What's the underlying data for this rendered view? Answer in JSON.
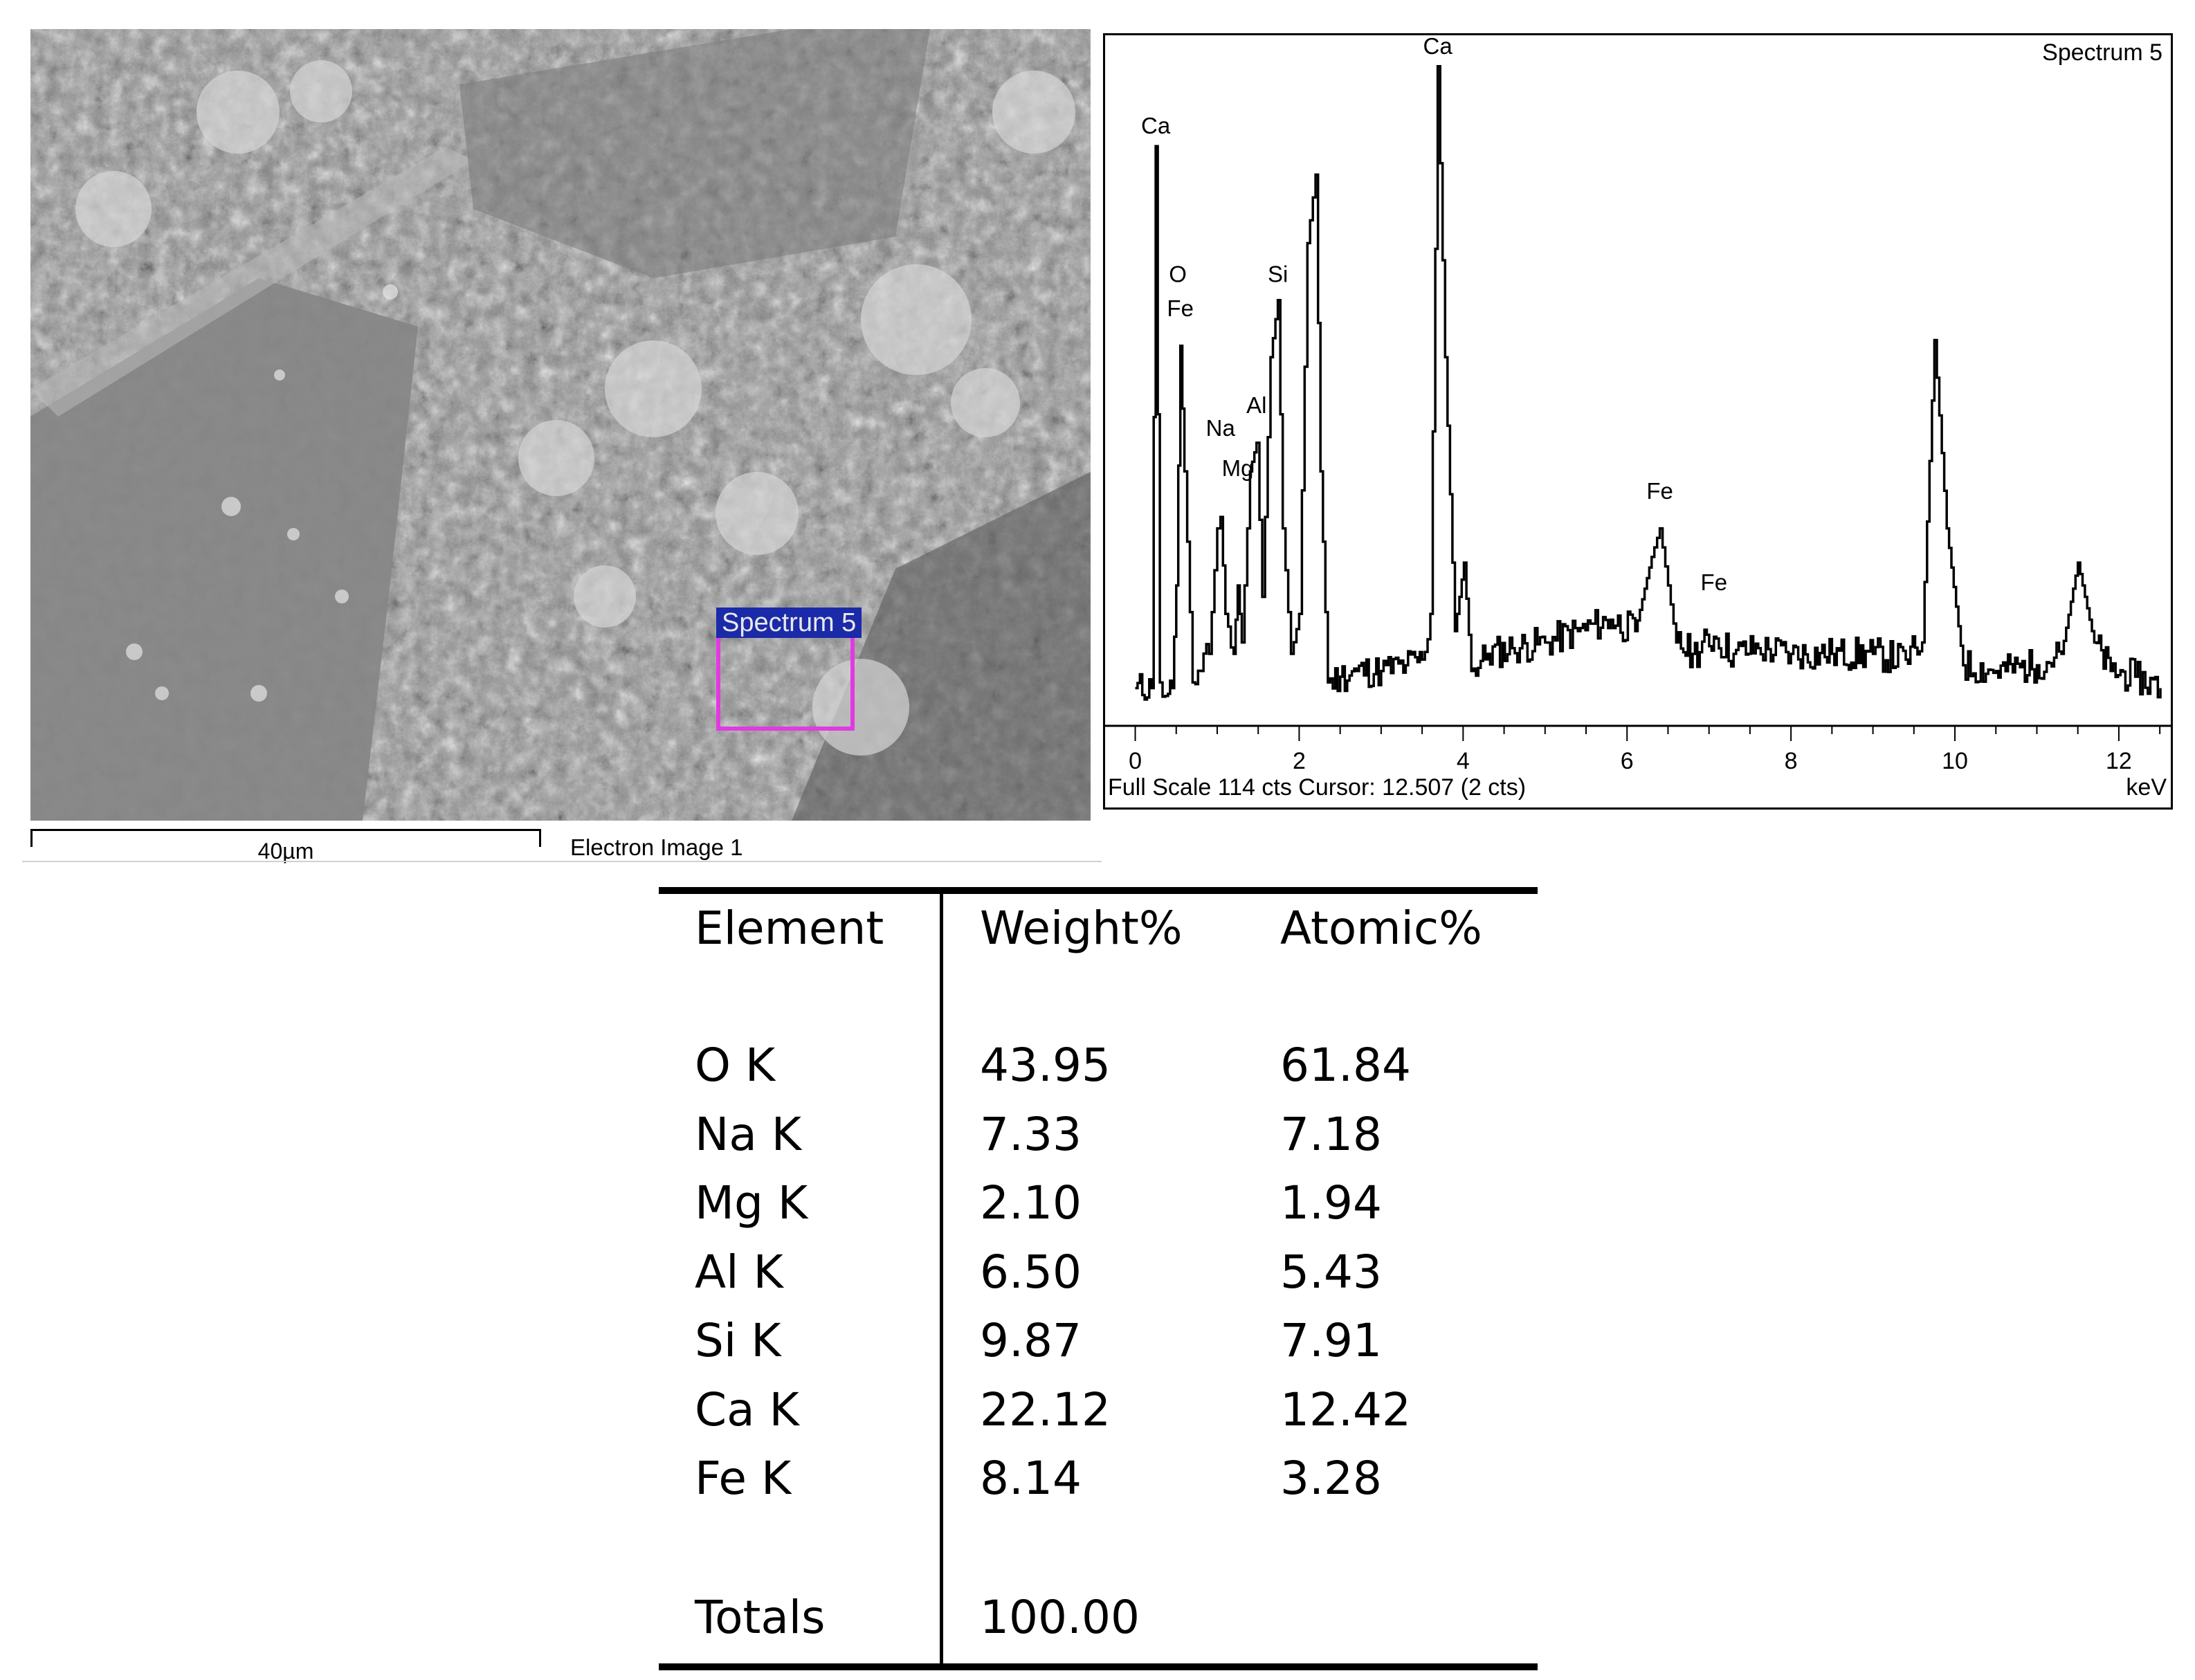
{
  "sem": {
    "spectrum_box_label": "Spectrum 5",
    "scale_bar_label": "40µm",
    "image_label": "Electron Image 1"
  },
  "spectrum": {
    "title": "Spectrum 5",
    "footer": "Full Scale 114 cts Cursor: 12.507  (2 cts)",
    "unit": "keV"
  },
  "chart_data": [
    {
      "type": "line",
      "title": "Spectrum 5",
      "xlabel": "keV",
      "ylabel": "",
      "xlim": [
        -0.3,
        12.6
      ],
      "ylim": [
        0,
        114
      ],
      "x_ticks": [
        0,
        2,
        4,
        6,
        8,
        10,
        12
      ],
      "grid": false,
      "series": [
        {
          "x": [
            0.0,
            0.2,
            0.25,
            0.3,
            0.4,
            0.45,
            0.5,
            0.55,
            0.6,
            0.7,
            0.8,
            0.9,
            1.0,
            1.04,
            1.1,
            1.2,
            1.25,
            1.3,
            1.4,
            1.48,
            1.55,
            1.65,
            1.74,
            1.8,
            1.9,
            2.0,
            2.1,
            2.2,
            2.26,
            2.35,
            2.5,
            2.7,
            3.0,
            3.3,
            3.5,
            3.6,
            3.69,
            3.78,
            3.9,
            4.01,
            4.1,
            4.3,
            4.6,
            5.0,
            5.4,
            5.8,
            6.1,
            6.3,
            6.4,
            6.5,
            6.6,
            6.8,
            7.06,
            7.3,
            7.6,
            8.0,
            8.5,
            9.0,
            9.4,
            9.6,
            9.75,
            9.9,
            10.1,
            10.5,
            11.0,
            11.3,
            11.5,
            11.7,
            11.9,
            12.2,
            12.507
          ],
          "y": [
            2,
            2,
            97,
            3,
            1,
            2,
            20,
            62,
            40,
            3,
            5,
            8,
            30,
            32,
            15,
            8,
            20,
            10,
            40,
            45,
            18,
            60,
            70,
            30,
            8,
            15,
            80,
            92,
            40,
            3,
            4,
            5,
            5,
            6,
            7,
            15,
            111,
            60,
            12,
            24,
            5,
            8,
            9,
            10,
            12,
            14,
            12,
            25,
            30,
            20,
            10,
            8,
            11,
            8,
            9,
            8,
            8,
            8,
            7,
            10,
            63,
            30,
            6,
            5,
            6,
            8,
            24,
            10,
            5,
            4,
            2
          ]
        }
      ],
      "annotations": [
        {
          "label": "Ca",
          "x": 0.25,
          "y": 97
        },
        {
          "label": "O",
          "x": 0.52,
          "y": 71
        },
        {
          "label": "Fe",
          "x": 0.55,
          "y": 65
        },
        {
          "label": "Na",
          "x": 1.04,
          "y": 44
        },
        {
          "label": "Mg",
          "x": 1.25,
          "y": 37
        },
        {
          "label": "Al",
          "x": 1.48,
          "y": 48
        },
        {
          "label": "Si",
          "x": 1.74,
          "y": 71
        },
        {
          "label": "Ca",
          "x": 3.69,
          "y": 111
        },
        {
          "label": "Fe",
          "x": 6.4,
          "y": 33
        },
        {
          "label": "Fe",
          "x": 7.06,
          "y": 17
        }
      ]
    },
    {
      "type": "table",
      "columns": [
        "Element",
        "Weight%",
        "Atomic%"
      ],
      "rows": [
        [
          "O K",
          "43.95",
          "61.84"
        ],
        [
          "Na K",
          "7.33",
          "7.18"
        ],
        [
          "Mg K",
          "2.10",
          "1.94"
        ],
        [
          "Al K",
          "6.50",
          "5.43"
        ],
        [
          "Si K",
          "9.87",
          "7.91"
        ],
        [
          "Ca K",
          "22.12",
          "12.42"
        ],
        [
          "Fe K",
          "8.14",
          "3.28"
        ]
      ],
      "totals": {
        "label": "Totals",
        "weight": "100.00",
        "atomic": ""
      }
    }
  ]
}
